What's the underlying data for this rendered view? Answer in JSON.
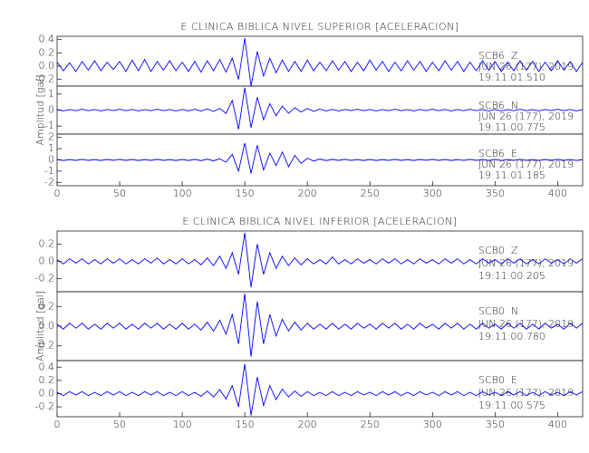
{
  "chart_data": [
    {
      "type": "line",
      "title": "E CLINICA BIBLICA NIVEL SUPERIOR [ACELERACION]",
      "ylabel": "Amplitud [gal]",
      "color": "#0000ff",
      "xlim": [
        0,
        420
      ],
      "xticks": [
        0,
        50,
        100,
        150,
        200,
        250,
        300,
        350,
        400
      ],
      "x": [
        0,
        5,
        10,
        15,
        20,
        25,
        30,
        35,
        40,
        45,
        50,
        55,
        60,
        65,
        70,
        75,
        80,
        85,
        90,
        95,
        100,
        105,
        110,
        115,
        120,
        125,
        130,
        135,
        140,
        145,
        150,
        155,
        160,
        165,
        170,
        175,
        180,
        185,
        190,
        195,
        200,
        205,
        210,
        215,
        220,
        225,
        230,
        235,
        240,
        245,
        250,
        255,
        260,
        265,
        270,
        275,
        280,
        285,
        290,
        295,
        300,
        305,
        310,
        315,
        320,
        325,
        330,
        335,
        340,
        345,
        350,
        355,
        360,
        365,
        370,
        375,
        380,
        385,
        390,
        395,
        400,
        405,
        410,
        415,
        420
      ],
      "panels": [
        {
          "station": "SCB6  Z",
          "date": "JUN 26 (177), 2019",
          "time": "19:11:01.510",
          "ylim": [
            -0.3,
            0.45
          ],
          "yticks": [
            -0.2,
            {
              "value": 0,
              "label": "0.0"
            },
            0.2,
            0.4
          ],
          "values": [
            0.06,
            -0.07,
            0.05,
            -0.08,
            0.07,
            -0.06,
            0.08,
            -0.07,
            0.06,
            -0.05,
            0.07,
            -0.08,
            0.09,
            -0.07,
            0.1,
            -0.08,
            0.07,
            -0.06,
            0.08,
            -0.07,
            0.06,
            -0.08,
            0.07,
            -0.09,
            0.08,
            -0.07,
            0.1,
            -0.09,
            0.12,
            -0.2,
            0.42,
            -0.3,
            0.22,
            -0.15,
            0.12,
            -0.1,
            0.09,
            -0.08,
            0.07,
            -0.08,
            0.09,
            -0.07,
            0.06,
            -0.07,
            0.08,
            -0.06,
            0.07,
            -0.08,
            0.06,
            -0.07,
            0.09,
            -0.06,
            0.07,
            -0.08,
            0.06,
            -0.07,
            0.08,
            -0.06,
            0.07,
            -0.08,
            0.06,
            -0.07,
            0.08,
            -0.06,
            0.07,
            -0.08,
            0.06,
            -0.07,
            0.08,
            -0.06,
            0.07,
            -0.08,
            0.06,
            -0.07,
            0.08,
            -0.06,
            0.07,
            -0.08,
            0.06,
            -0.07,
            0.08,
            -0.06,
            0.07,
            -0.08,
            0.06
          ]
        },
        {
          "station": "SCB6  N",
          "date": "JUN 26 (177), 2019",
          "time": "19:11:00.775",
          "ylim": [
            -1.5,
            1.5
          ],
          "yticks": [
            -1,
            0,
            1
          ],
          "values": [
            0.04,
            -0.05,
            0.03,
            -0.04,
            0.05,
            -0.04,
            0.03,
            -0.05,
            0.04,
            -0.03,
            0.05,
            -0.04,
            0.04,
            -0.05,
            0.03,
            -0.04,
            0.05,
            -0.04,
            0.03,
            -0.05,
            0.04,
            -0.05,
            0.05,
            -0.06,
            0.07,
            -0.08,
            0.1,
            -0.2,
            0.6,
            -1.2,
            1.4,
            -1.1,
            0.8,
            -0.6,
            0.4,
            -0.35,
            0.25,
            -0.2,
            0.15,
            -0.12,
            0.1,
            -0.08,
            0.06,
            -0.05,
            0.04,
            -0.05,
            0.04,
            -0.03,
            0.05,
            -0.04,
            0.04,
            -0.05,
            0.03,
            -0.04,
            0.05,
            -0.04,
            0.03,
            -0.05,
            0.04,
            -0.03,
            0.05,
            -0.04,
            0.04,
            -0.05,
            0.03,
            -0.04,
            0.05,
            -0.04,
            0.03,
            -0.05,
            0.04,
            -0.05,
            0.03,
            -0.04,
            0.05,
            -0.04,
            0.03,
            -0.05,
            0.04,
            -0.03,
            0.05,
            -0.04,
            0.04,
            -0.05,
            0.03
          ]
        },
        {
          "station": "SCB6  E",
          "date": "JUN 26 (177), 2019",
          "time": "19:11:01.185",
          "ylim": [
            -2.3,
            2.3
          ],
          "yticks": [
            -2,
            -1,
            0,
            1,
            2
          ],
          "values": [
            0.04,
            -0.05,
            0.03,
            -0.04,
            0.05,
            -0.04,
            0.03,
            -0.05,
            0.04,
            -0.03,
            0.05,
            -0.04,
            0.04,
            -0.05,
            0.03,
            -0.04,
            0.05,
            -0.04,
            0.03,
            -0.05,
            0.04,
            -0.05,
            0.05,
            -0.06,
            0.07,
            -0.08,
            0.1,
            -0.2,
            0.5,
            -1.0,
            1.5,
            -1.2,
            1.3,
            -0.9,
            0.6,
            -0.5,
            0.7,
            -0.6,
            0.4,
            -0.3,
            0.15,
            -0.1,
            0.08,
            -0.06,
            0.05,
            -0.04,
            0.05,
            -0.04,
            0.03,
            -0.05,
            0.04,
            -0.05,
            0.03,
            -0.04,
            0.05,
            -0.04,
            0.03,
            -0.05,
            0.04,
            -0.03,
            0.05,
            -0.04,
            0.04,
            -0.05,
            0.03,
            -0.04,
            0.05,
            -0.04,
            0.03,
            -0.05,
            0.04,
            -0.05,
            0.03,
            -0.04,
            0.05,
            -0.04,
            0.03,
            -0.05,
            0.04,
            -0.03,
            0.05,
            -0.04,
            0.04,
            -0.05,
            0.03
          ]
        }
      ]
    },
    {
      "type": "line",
      "title": "E CLINICA BIBLICA NIVEL INFERIOR [ACELERACION]",
      "ylabel": "Amplitud [gal]",
      "color": "#0000ff",
      "xlim": [
        0,
        420
      ],
      "xticks": [
        0,
        50,
        100,
        150,
        200,
        250,
        300,
        350,
        400
      ],
      "x": [
        0,
        5,
        10,
        15,
        20,
        25,
        30,
        35,
        40,
        45,
        50,
        55,
        60,
        65,
        70,
        75,
        80,
        85,
        90,
        95,
        100,
        105,
        110,
        115,
        120,
        125,
        130,
        135,
        140,
        145,
        150,
        155,
        160,
        165,
        170,
        175,
        180,
        185,
        190,
        195,
        200,
        205,
        210,
        215,
        220,
        225,
        230,
        235,
        240,
        245,
        250,
        255,
        260,
        265,
        270,
        275,
        280,
        285,
        290,
        295,
        300,
        305,
        310,
        315,
        320,
        325,
        330,
        335,
        340,
        345,
        350,
        355,
        360,
        365,
        370,
        375,
        380,
        385,
        390,
        395,
        400,
        405,
        410,
        415,
        420
      ],
      "panels": [
        {
          "station": "SCB0  Z",
          "date": "JUN 26 (177), 2019",
          "time": "19:11:00.205",
          "ylim": [
            -0.35,
            0.35
          ],
          "yticks": [
            -0.2,
            {
              "value": 0,
              "label": "0.0"
            },
            0.2
          ],
          "values": [
            0.02,
            -0.03,
            0.03,
            -0.02,
            0.03,
            -0.03,
            0.02,
            -0.03,
            0.03,
            -0.02,
            0.03,
            -0.03,
            0.02,
            -0.03,
            0.03,
            -0.02,
            0.04,
            -0.03,
            0.02,
            -0.03,
            0.03,
            -0.03,
            0.02,
            -0.04,
            0.04,
            -0.05,
            0.06,
            -0.08,
            0.1,
            -0.15,
            0.33,
            -0.3,
            0.2,
            -0.15,
            0.1,
            -0.08,
            0.06,
            -0.05,
            0.04,
            -0.04,
            0.03,
            -0.03,
            0.02,
            -0.03,
            0.05,
            -0.03,
            0.02,
            -0.03,
            0.03,
            -0.02,
            0.02,
            -0.03,
            0.03,
            -0.02,
            0.03,
            -0.03,
            0.02,
            -0.03,
            0.03,
            -0.02,
            0.02,
            -0.03,
            0.03,
            -0.02,
            0.03,
            -0.03,
            0.02,
            -0.03,
            0.03,
            -0.02,
            0.02,
            -0.03,
            0.03,
            -0.02,
            0.03,
            -0.03,
            0.02,
            -0.03,
            0.03,
            -0.02,
            0.02,
            -0.03,
            0.03,
            -0.02,
            0.03
          ]
        },
        {
          "station": "SCB0  N",
          "date": "JUN 26 (177), 2019",
          "time": "19:11:00.780",
          "ylim": [
            -0.35,
            0.35
          ],
          "yticks": [
            -0.2,
            {
              "value": 0,
              "label": "0.0"
            },
            0.2
          ],
          "values": [
            0.02,
            -0.03,
            0.03,
            -0.02,
            0.03,
            -0.03,
            0.02,
            -0.03,
            0.03,
            -0.02,
            0.03,
            -0.03,
            0.02,
            -0.03,
            0.03,
            -0.02,
            0.03,
            -0.03,
            0.02,
            -0.03,
            0.03,
            -0.03,
            0.02,
            -0.04,
            0.04,
            -0.05,
            0.06,
            -0.08,
            0.12,
            -0.18,
            0.33,
            -0.31,
            0.25,
            -0.18,
            0.12,
            -0.1,
            0.07,
            -0.05,
            0.04,
            -0.04,
            0.03,
            -0.03,
            0.02,
            -0.03,
            0.03,
            -0.03,
            0.02,
            -0.03,
            0.03,
            -0.02,
            0.02,
            -0.03,
            0.03,
            -0.02,
            0.03,
            -0.03,
            0.02,
            -0.03,
            0.03,
            -0.02,
            0.02,
            -0.03,
            0.03,
            -0.02,
            0.03,
            -0.03,
            0.02,
            -0.03,
            0.03,
            -0.02,
            0.02,
            -0.03,
            0.03,
            -0.02,
            0.03,
            -0.03,
            0.02,
            -0.03,
            0.03,
            -0.02,
            0.02,
            -0.03,
            0.03,
            -0.02,
            0.03
          ]
        },
        {
          "station": "SCB0  E",
          "date": "JUN 26 (177), 2019",
          "time": "19:11:00.575",
          "ylim": [
            -0.35,
            0.5
          ],
          "yticks": [
            -0.2,
            {
              "value": 0,
              "label": "0.0"
            },
            0.2,
            0.4
          ],
          "values": [
            0.02,
            -0.03,
            0.03,
            -0.02,
            0.03,
            -0.03,
            0.02,
            -0.03,
            0.03,
            -0.02,
            0.03,
            -0.03,
            0.02,
            -0.03,
            0.03,
            -0.02,
            0.03,
            -0.03,
            0.02,
            -0.03,
            0.03,
            -0.03,
            0.02,
            -0.04,
            0.04,
            -0.05,
            0.06,
            -0.08,
            0.12,
            -0.2,
            0.45,
            -0.33,
            0.25,
            -0.18,
            0.12,
            -0.09,
            0.07,
            -0.05,
            0.04,
            -0.04,
            0.03,
            -0.03,
            0.02,
            -0.03,
            0.03,
            -0.03,
            0.02,
            -0.03,
            0.03,
            -0.02,
            0.02,
            -0.03,
            0.03,
            -0.02,
            0.03,
            -0.03,
            0.02,
            -0.03,
            0.03,
            -0.02,
            0.02,
            -0.03,
            0.03,
            -0.02,
            0.03,
            -0.03,
            0.02,
            -0.03,
            0.03,
            -0.02,
            0.02,
            -0.03,
            0.03,
            -0.02,
            0.03,
            -0.03,
            0.02,
            -0.03,
            0.03,
            -0.02,
            0.02,
            -0.03,
            0.03,
            -0.02,
            0.03
          ]
        }
      ]
    }
  ]
}
